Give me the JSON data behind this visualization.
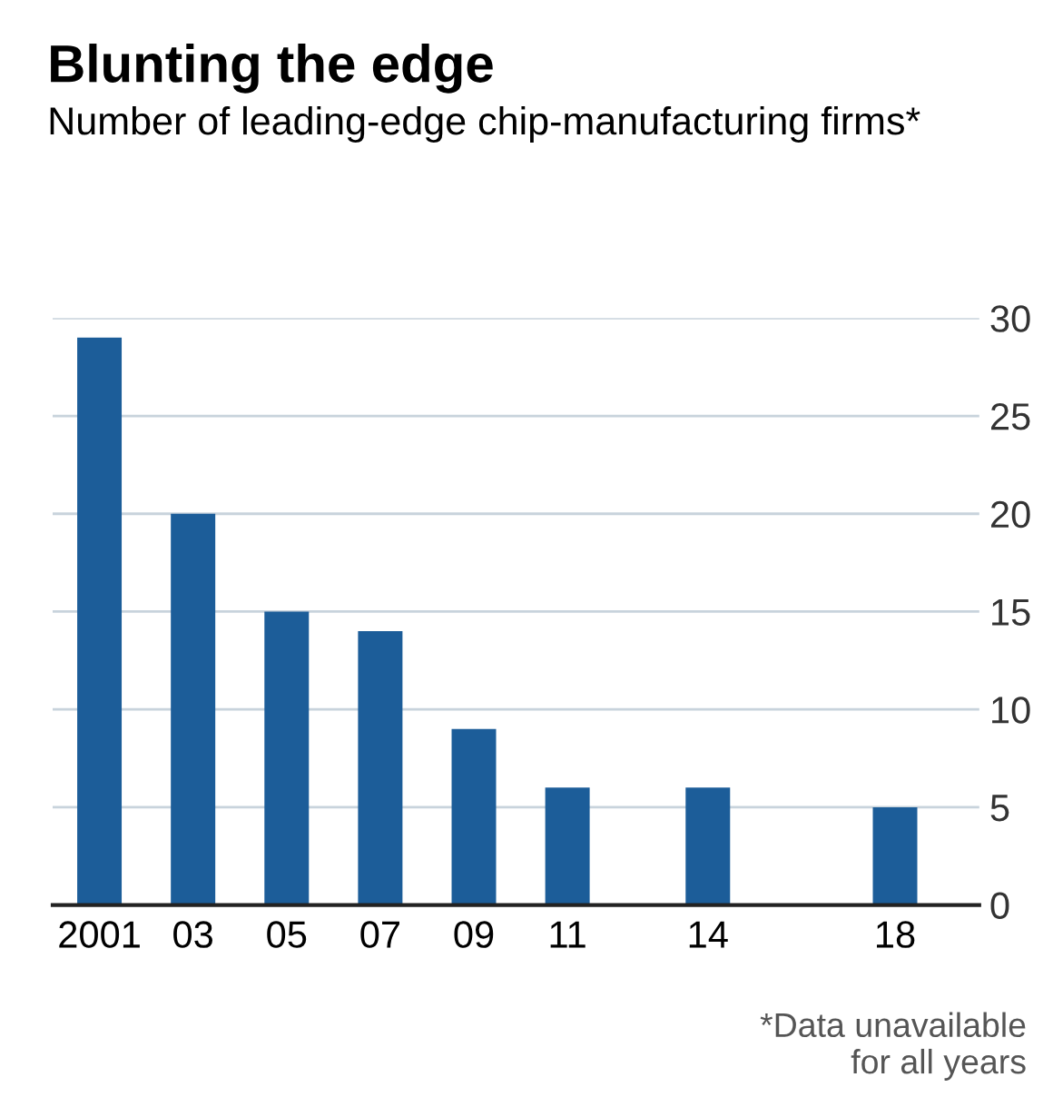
{
  "chart_data": {
    "type": "bar",
    "title": "Blunting the edge",
    "subtitle": "Number of leading-edge chip-manufacturing firms*",
    "x": [
      2001,
      2003,
      2005,
      2007,
      2009,
      2011,
      2014,
      2018
    ],
    "values": [
      29,
      20,
      15,
      14,
      9,
      6,
      6,
      5
    ],
    "color": "#1c5d99",
    "xlim": [
      2000,
      2019.8
    ],
    "xticks": [
      {
        "value": 2001,
        "label": "2001"
      },
      {
        "value": 2003,
        "label": "03"
      },
      {
        "value": 2005,
        "label": "05"
      },
      {
        "value": 2007,
        "label": "07"
      },
      {
        "value": 2009,
        "label": "09"
      },
      {
        "value": 2011,
        "label": "11"
      },
      {
        "value": 2014,
        "label": "14"
      },
      {
        "value": 2018,
        "label": "18"
      }
    ],
    "ylim": [
      0,
      30
    ],
    "yticks": [
      0,
      5,
      10,
      15,
      20,
      25,
      30
    ],
    "grid": "y",
    "annotations": [
      "*Data unavailable\nfor all years"
    ]
  }
}
